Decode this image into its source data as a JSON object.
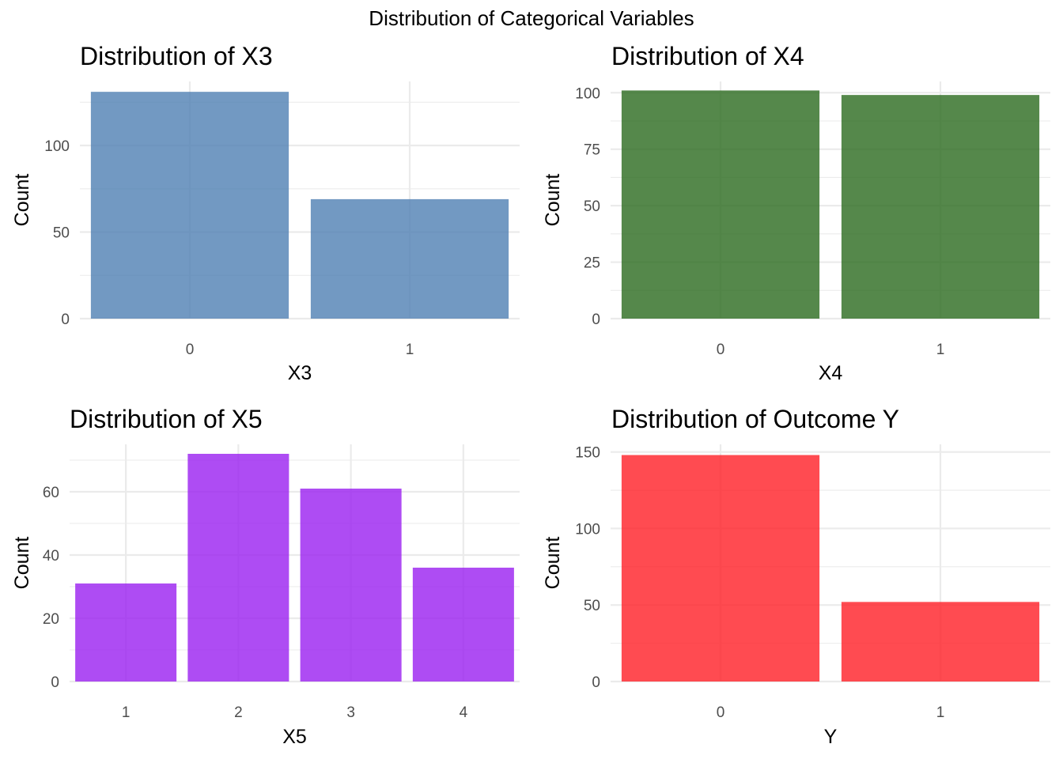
{
  "figure": {
    "title": "Distribution of Categorical Variables"
  },
  "chart_data": [
    {
      "type": "bar",
      "title": "Distribution of X3",
      "xlabel": "X3",
      "ylabel": "Count",
      "categories": [
        "0",
        "1"
      ],
      "values": [
        131,
        69
      ],
      "ylim": [
        0,
        137
      ],
      "yticks": [
        0,
        50,
        100
      ],
      "color": "#4f7fb3",
      "grid": true
    },
    {
      "type": "bar",
      "title": "Distribution of X4",
      "xlabel": "X4",
      "ylabel": "Count",
      "categories": [
        "0",
        "1"
      ],
      "values": [
        101,
        99
      ],
      "ylim": [
        0,
        105
      ],
      "yticks": [
        0,
        25,
        50,
        75,
        100
      ],
      "color": "#2a6a1e",
      "grid": true
    },
    {
      "type": "bar",
      "title": "Distribution of X5",
      "xlabel": "X5",
      "ylabel": "Count",
      "categories": [
        "1",
        "2",
        "3",
        "4"
      ],
      "values": [
        31,
        72,
        61,
        36
      ],
      "ylim": [
        0,
        75
      ],
      "yticks": [
        0,
        20,
        40,
        60
      ],
      "color": "#9a1ff0",
      "grid": true
    },
    {
      "type": "bar",
      "title": "Distribution of Outcome Y",
      "xlabel": "Y",
      "ylabel": "Count",
      "categories": [
        "0",
        "1"
      ],
      "values": [
        148,
        52
      ],
      "ylim": [
        0,
        155
      ],
      "yticks": [
        0,
        50,
        100,
        150
      ],
      "color": "#ff1e26",
      "grid": true
    }
  ]
}
